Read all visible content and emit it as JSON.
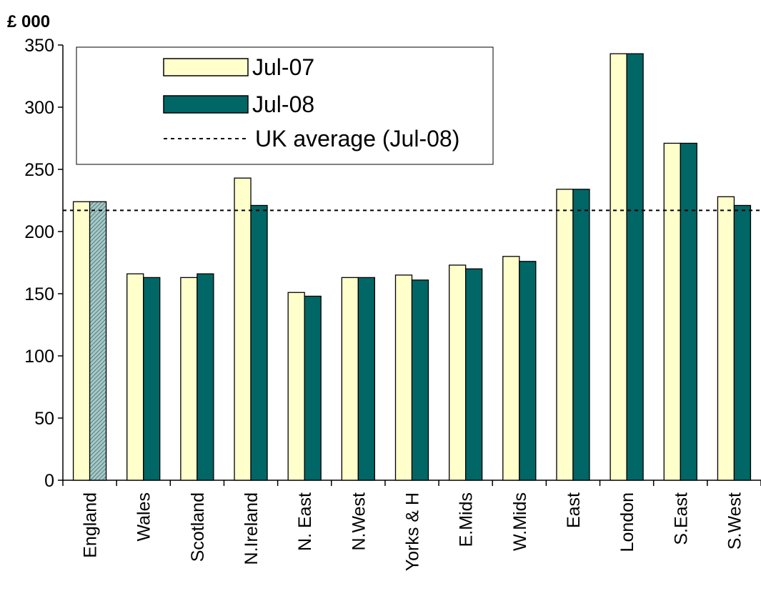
{
  "chart_data": {
    "type": "bar",
    "unit_label": "£ 000",
    "categories": [
      "England",
      "Wales",
      "Scotland",
      "N.Ireland",
      "N. East",
      "N.West",
      "Yorks & H",
      "E.Mids",
      "W.Mids",
      "East",
      "London",
      "S.East",
      "S.West"
    ],
    "series": [
      {
        "name": "Jul-07",
        "color": "#FFFFCC",
        "values": [
          224,
          166,
          163,
          243,
          151,
          163,
          165,
          173,
          180,
          234,
          343,
          271,
          228
        ]
      },
      {
        "name": "Jul-08",
        "color": "#006666",
        "values": [
          224,
          163,
          166,
          221,
          148,
          163,
          161,
          170,
          176,
          234,
          343,
          271,
          221
        ]
      }
    ],
    "reference_line": {
      "name": "UK average (Jul-08)",
      "value": 217,
      "style": "dotted"
    },
    "highlight": {
      "category": "England",
      "series": "Jul-08",
      "pattern": "hatched"
    },
    "ylim": [
      0,
      350
    ],
    "yticks": [
      0,
      50,
      100,
      150,
      200,
      250,
      300,
      350
    ],
    "legend_position": "top-left",
    "grid": false
  }
}
